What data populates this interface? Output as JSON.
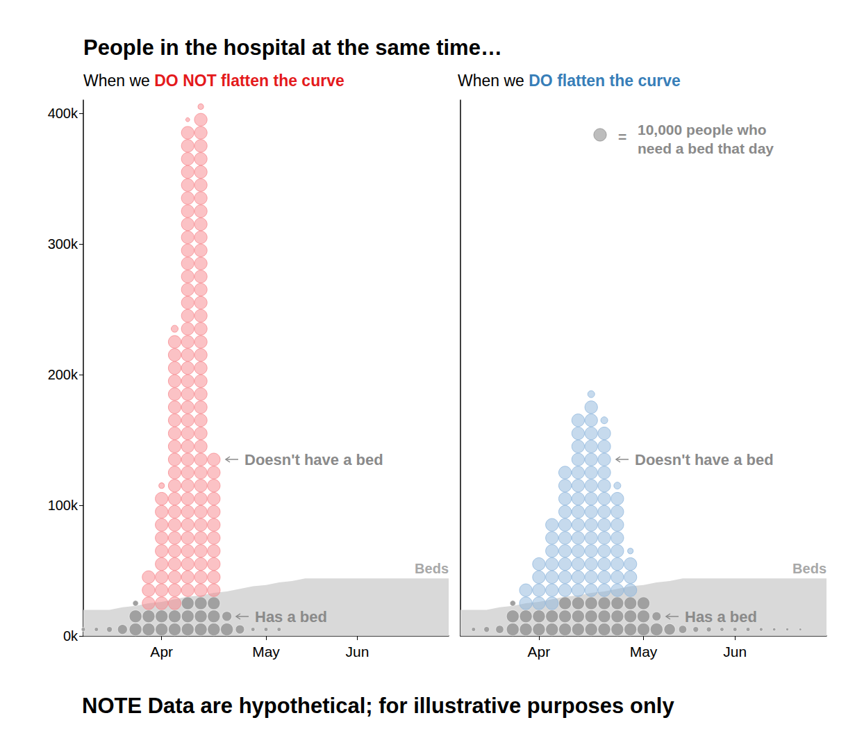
{
  "title": "People in the hospital at the same time…",
  "note": "NOTE Data are hypothetical; for illustrative purposes only",
  "key": {
    "circle_value": 10000,
    "symbol_text": "=",
    "lines": [
      "10,000 people who",
      "need a bed that day"
    ],
    "color": "#bdbdbd"
  },
  "chart_data": [
    {
      "type": "dot_stack",
      "subtitle": "When we DO NOT flatten the curve",
      "subtitle_highlight": "DO NOT flatten the curve",
      "highlight_color": "#e41a1c",
      "categories": [
        null,
        null,
        null,
        null,
        null,
        null,
        "Apr",
        null,
        null,
        null,
        null,
        null,
        null,
        null,
        "May",
        null,
        null,
        null,
        null,
        null,
        null,
        "Jun",
        null,
        null,
        null,
        null,
        null,
        null,
        null
      ],
      "series": [
        {
          "name": "Has a bed",
          "type": "dots",
          "color": "#a0a0a0",
          "values": [
            1000,
            1000,
            2000,
            6000,
            22000,
            20000,
            20000,
            20000,
            30000,
            30000,
            30000,
            16000,
            5000,
            1000,
            1000,
            1000,
            0,
            0,
            0,
            0,
            0,
            0,
            0,
            0,
            0,
            0,
            0,
            0,
            0
          ]
        },
        {
          "name": "Doesn't have a bed",
          "type": "dots",
          "color": "#f7868c",
          "values": [
            0,
            0,
            0,
            0,
            0,
            30000,
            92000,
            213000,
            361000,
            372000,
            110000,
            0,
            0,
            0,
            0,
            0,
            0,
            0,
            0,
            0,
            0,
            0,
            0,
            0,
            0,
            0,
            0,
            0,
            0
          ]
        },
        {
          "name": "Beds",
          "type": "area",
          "color": "#d9d9d9",
          "values": [
            20000,
            20000,
            20000,
            22000,
            23000,
            25000,
            26000,
            28000,
            30000,
            31000,
            33000,
            34000,
            36000,
            38000,
            39000,
            41000,
            42000,
            44000,
            44000,
            44000,
            44000,
            44000,
            44000,
            44000,
            44000,
            44000,
            44000,
            44000,
            44000
          ]
        }
      ],
      "ylim": [
        0,
        410000
      ],
      "yticks": [
        {
          "value": 0,
          "label": "0k"
        },
        {
          "value": 100000,
          "label": "100k"
        },
        {
          "value": 200000,
          "label": "200k"
        },
        {
          "value": 300000,
          "label": "300k"
        },
        {
          "value": 400000,
          "label": "400k"
        }
      ],
      "grid": false,
      "tick_labels": true
    },
    {
      "type": "dot_stack",
      "subtitle": "When we DO flatten the curve",
      "subtitle_highlight": "DO flatten the curve",
      "highlight_color": "#377eb8",
      "categories": [
        null,
        null,
        null,
        null,
        null,
        null,
        "Apr",
        null,
        null,
        null,
        null,
        null,
        null,
        null,
        "May",
        null,
        null,
        null,
        null,
        null,
        null,
        "Jun",
        null,
        null,
        null,
        null,
        null,
        null,
        null
      ],
      "series": [
        {
          "name": "Has a bed",
          "type": "dots",
          "color": "#a0a0a0",
          "values": [
            0,
            1000,
            2000,
            4000,
            22000,
            20000,
            20000,
            20000,
            30000,
            30000,
            30000,
            30000,
            30000,
            30000,
            30000,
            15000,
            8000,
            4000,
            2000,
            1500,
            1000,
            1000,
            1000,
            800,
            600,
            500,
            400,
            0,
            0
          ]
        },
        {
          "name": "Doesn't have a bed",
          "type": "dots",
          "color": "#8db5dc",
          "values": [
            0,
            0,
            0,
            0,
            0,
            20000,
            40000,
            70000,
            100000,
            140000,
            153000,
            133000,
            83000,
            32000,
            0,
            0,
            0,
            0,
            0,
            0,
            0,
            0,
            0,
            0,
            0,
            0,
            0,
            0,
            0
          ]
        },
        {
          "name": "Beds",
          "type": "area",
          "color": "#d9d9d9",
          "values": [
            20000,
            20000,
            20000,
            22000,
            23000,
            25000,
            26000,
            28000,
            30000,
            31000,
            33000,
            34000,
            36000,
            38000,
            39000,
            41000,
            42000,
            44000,
            44000,
            44000,
            44000,
            44000,
            44000,
            44000,
            44000,
            44000,
            44000,
            44000,
            44000
          ]
        }
      ],
      "ylim": [
        0,
        410000
      ],
      "grid": false,
      "tick_labels": "x"
    }
  ]
}
